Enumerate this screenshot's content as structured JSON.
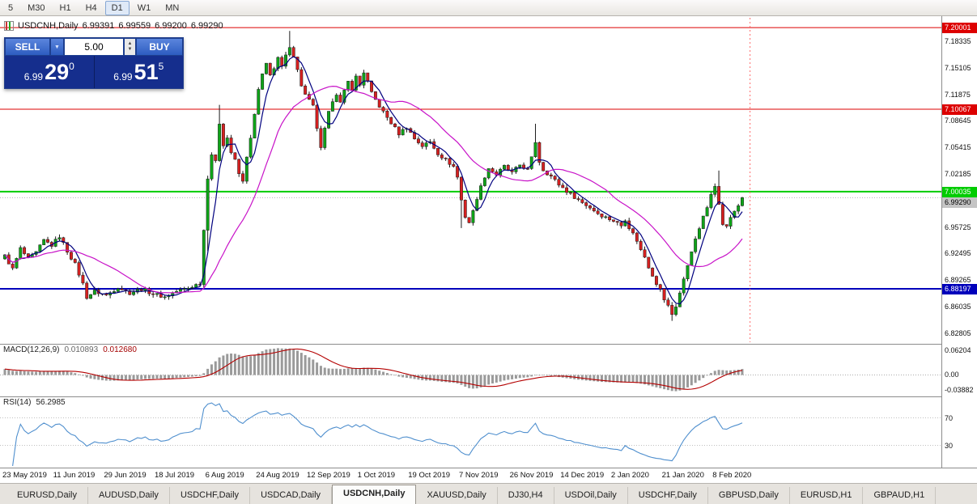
{
  "toolbar": {
    "items": [
      {
        "label": "5",
        "active": false
      },
      {
        "label": "M30",
        "active": false
      },
      {
        "label": "H1",
        "active": false
      },
      {
        "label": "H4",
        "active": false
      },
      {
        "label": "D1",
        "active": true
      },
      {
        "label": "W1",
        "active": false
      },
      {
        "label": "MN",
        "active": false
      }
    ]
  },
  "header": {
    "symbol": "USDCNH,Daily",
    "open": "6.99391",
    "high": "6.99559",
    "low": "6.99200",
    "close": "6.99290"
  },
  "trade_panel": {
    "sell_label": "SELL",
    "buy_label": "BUY",
    "volume": "5.00",
    "sell": {
      "prefix": "6.99",
      "big": "29",
      "sup": "0"
    },
    "buy": {
      "prefix": "6.99",
      "big": "51",
      "sup": "5"
    },
    "icons": {
      "dropdown": "▼",
      "spinner_up": "▲",
      "spinner_down": "▼"
    }
  },
  "price_axis": {
    "ticks": [
      "7.18335",
      "7.15105",
      "7.11875",
      "7.08645",
      "7.05415",
      "7.02185",
      "6.95725",
      "6.92495",
      "6.89265",
      "6.86035",
      "6.82805"
    ]
  },
  "levels": [
    {
      "price": 7.20001,
      "label": "7.20001",
      "color": "#dd0000",
      "text_color": "#ffffff",
      "width": 1
    },
    {
      "price": 7.10067,
      "label": "7.10067",
      "color": "#dd0000",
      "text_color": "#ffffff",
      "width": 1
    },
    {
      "price": 7.00035,
      "label": "7.00035",
      "color": "#00cc00",
      "text_color": "#ffffff",
      "width": 2
    },
    {
      "price": 6.88197,
      "label": "6.88197",
      "color": "#0000bb",
      "text_color": "#ffffff",
      "width": 2
    }
  ],
  "bid": {
    "price": 6.9929,
    "label": "6.99290",
    "color": "#c4c4c4",
    "text_color": "#000000"
  },
  "macd": {
    "name": "MACD(12,26,9)",
    "value1": "0.010893",
    "value2": "0.012680",
    "axis_top": "0.06204",
    "axis_zero": "0.00",
    "axis_bottom": "-0.03882"
  },
  "rsi": {
    "name": "RSI(14)",
    "value": "56.2985",
    "level_upper": "70",
    "level_lower": "30"
  },
  "time_axis": {
    "labels": [
      {
        "text": "23 May 2019",
        "bar": 0
      },
      {
        "text": "11 Jun 2019",
        "bar": 13
      },
      {
        "text": "29 Jun 2019",
        "bar": 26
      },
      {
        "text": "18 Jul 2019",
        "bar": 39
      },
      {
        "text": "6 Aug 2019",
        "bar": 52
      },
      {
        "text": "24 Aug 2019",
        "bar": 65
      },
      {
        "text": "12 Sep 2019",
        "bar": 78
      },
      {
        "text": "1 Oct 2019",
        "bar": 91
      },
      {
        "text": "19 Oct 2019",
        "bar": 104
      },
      {
        "text": "7 Nov 2019",
        "bar": 117
      },
      {
        "text": "26 Nov 2019",
        "bar": 130
      },
      {
        "text": "14 Dec 2019",
        "bar": 143
      },
      {
        "text": "2 Jan 2020",
        "bar": 156
      },
      {
        "text": "21 Jan 2020",
        "bar": 169
      },
      {
        "text": "8 Feb 2020",
        "bar": 182
      }
    ]
  },
  "tabs": [
    {
      "label": "EURUSD,Daily",
      "active": false
    },
    {
      "label": "AUDUSD,Daily",
      "active": false
    },
    {
      "label": "USDCHF,Daily",
      "active": false
    },
    {
      "label": "USDCAD,Daily",
      "active": false
    },
    {
      "label": "USDCNH,Daily",
      "active": true
    },
    {
      "label": "XAUUSD,Daily",
      "active": false
    },
    {
      "label": "DJ30,H4",
      "active": false
    },
    {
      "label": "USDOil,Daily",
      "active": false
    },
    {
      "label": "USDCHF,Daily",
      "active": false
    },
    {
      "label": "GBPUSD,Daily",
      "active": false
    },
    {
      "label": "EURUSD,H1",
      "active": false
    },
    {
      "label": "GBPAUD,H1",
      "active": false
    }
  ],
  "chart_data": {
    "type": "candlestick",
    "symbol": "USDCNH",
    "timeframe": "Daily",
    "bars": 190,
    "price_range": [
      6.818,
      7.212
    ],
    "close_keypoints": [
      [
        0,
        6.922
      ],
      [
        2,
        6.906
      ],
      [
        4,
        6.931
      ],
      [
        6,
        6.918
      ],
      [
        8,
        6.926
      ],
      [
        10,
        6.941
      ],
      [
        12,
        6.935
      ],
      [
        14,
        6.946
      ],
      [
        16,
        6.928
      ],
      [
        18,
        6.912
      ],
      [
        20,
        6.888
      ],
      [
        21,
        6.872
      ],
      [
        23,
        6.879
      ],
      [
        26,
        6.874
      ],
      [
        29,
        6.884
      ],
      [
        32,
        6.877
      ],
      [
        35,
        6.882
      ],
      [
        38,
        6.876
      ],
      [
        41,
        6.872
      ],
      [
        44,
        6.879
      ],
      [
        47,
        6.883
      ],
      [
        50,
        6.889
      ],
      [
        52,
        7.018
      ],
      [
        53,
        7.046
      ],
      [
        54,
        7.036
      ],
      [
        55,
        7.084
      ],
      [
        56,
        7.058
      ],
      [
        57,
        7.066
      ],
      [
        58,
        7.048
      ],
      [
        59,
        7.038
      ],
      [
        60,
        7.022
      ],
      [
        61,
        7.012
      ],
      [
        62,
        7.044
      ],
      [
        63,
        7.064
      ],
      [
        64,
        7.094
      ],
      [
        65,
        7.124
      ],
      [
        66,
        7.142
      ],
      [
        67,
        7.156
      ],
      [
        68,
        7.144
      ],
      [
        69,
        7.15
      ],
      [
        70,
        7.162
      ],
      [
        71,
        7.152
      ],
      [
        72,
        7.165
      ],
      [
        73,
        7.178
      ],
      [
        74,
        7.166
      ],
      [
        75,
        7.148
      ],
      [
        76,
        7.13
      ],
      [
        77,
        7.118
      ],
      [
        79,
        7.104
      ],
      [
        80,
        7.078
      ],
      [
        81,
        7.052
      ],
      [
        82,
        7.076
      ],
      [
        83,
        7.096
      ],
      [
        84,
        7.112
      ],
      [
        85,
        7.12
      ],
      [
        86,
        7.108
      ],
      [
        87,
        7.122
      ],
      [
        88,
        7.134
      ],
      [
        89,
        7.126
      ],
      [
        90,
        7.14
      ],
      [
        91,
        7.13
      ],
      [
        92,
        7.146
      ],
      [
        93,
        7.134
      ],
      [
        94,
        7.12
      ],
      [
        95,
        7.112
      ],
      [
        97,
        7.097
      ],
      [
        99,
        7.084
      ],
      [
        101,
        7.071
      ],
      [
        103,
        7.079
      ],
      [
        105,
        7.065
      ],
      [
        107,
        7.056
      ],
      [
        109,
        7.061
      ],
      [
        111,
        7.047
      ],
      [
        113,
        7.039
      ],
      [
        115,
        7.031
      ],
      [
        116,
        7.018
      ],
      [
        117,
        6.99
      ],
      [
        118,
        6.97
      ],
      [
        119,
        6.963
      ],
      [
        120,
        6.976
      ],
      [
        121,
        6.993
      ],
      [
        122,
        7.006
      ],
      [
        123,
        7.019
      ],
      [
        124,
        7.029
      ],
      [
        126,
        7.021
      ],
      [
        128,
        7.031
      ],
      [
        130,
        7.023
      ],
      [
        132,
        7.033
      ],
      [
        134,
        7.027
      ],
      [
        135,
        7.041
      ],
      [
        136,
        7.061
      ],
      [
        137,
        7.037
      ],
      [
        138,
        7.027
      ],
      [
        140,
        7.019
      ],
      [
        142,
        7.009
      ],
      [
        144,
        7.001
      ],
      [
        146,
        6.994
      ],
      [
        148,
        6.987
      ],
      [
        150,
        6.981
      ],
      [
        152,
        6.974
      ],
      [
        154,
        6.969
      ],
      [
        156,
        6.965
      ],
      [
        158,
        6.959
      ],
      [
        159,
        6.967
      ],
      [
        160,
        6.957
      ],
      [
        161,
        6.949
      ],
      [
        162,
        6.941
      ],
      [
        163,
        6.929
      ],
      [
        164,
        6.921
      ],
      [
        165,
        6.909
      ],
      [
        166,
        6.899
      ],
      [
        167,
        6.889
      ],
      [
        168,
        6.881
      ],
      [
        169,
        6.869
      ],
      [
        170,
        6.861
      ],
      [
        171,
        6.851
      ],
      [
        172,
        6.861
      ],
      [
        173,
        6.877
      ],
      [
        174,
        6.893
      ],
      [
        175,
        6.911
      ],
      [
        176,
        6.929
      ],
      [
        177,
        6.941
      ],
      [
        178,
        6.956
      ],
      [
        179,
        6.969
      ],
      [
        180,
        6.981
      ],
      [
        181,
        6.999
      ],
      [
        182,
        7.009
      ],
      [
        183,
        6.984
      ],
      [
        184,
        6.961
      ],
      [
        185,
        6.957
      ],
      [
        186,
        6.969
      ],
      [
        187,
        6.977
      ],
      [
        188,
        6.984
      ],
      [
        189,
        6.993
      ]
    ],
    "wick_overrides": [
      [
        52,
        "low",
        6.928
      ],
      [
        55,
        "high",
        7.106
      ],
      [
        73,
        "high",
        7.196
      ],
      [
        117,
        "low",
        6.956
      ],
      [
        136,
        "high",
        7.083
      ],
      [
        171,
        "low",
        6.843
      ],
      [
        183,
        "high",
        7.026
      ]
    ],
    "ma_fast_period": 5,
    "ma_slow_period": 20,
    "colors": {
      "up": "#0ea418",
      "down": "#d62020",
      "wick": "#1c1c1c",
      "ma_fast": "#00007f",
      "ma_slow": "#c813c8",
      "macd_hist": "#9a9a9a",
      "macd_signal": "#b40000",
      "rsi_line": "#4f8fce",
      "level_dotted": "#c0c0c0"
    }
  }
}
